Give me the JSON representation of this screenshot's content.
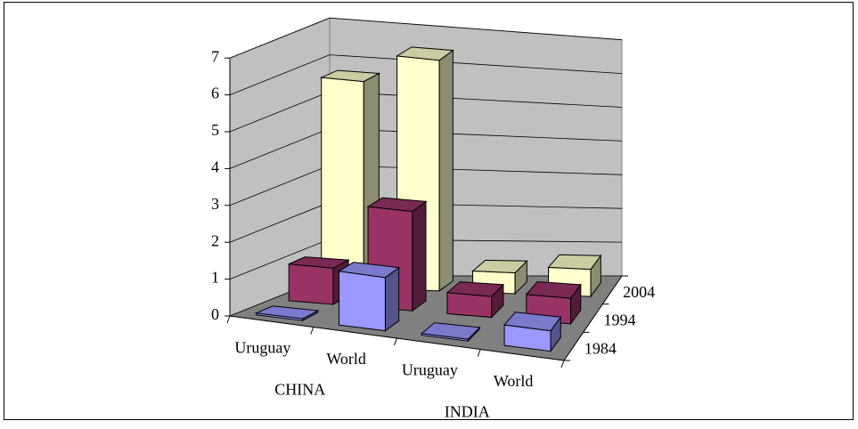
{
  "chart_data": {
    "type": "bar3d",
    "groups": [
      {
        "name": "CHINA",
        "categories": [
          "Uruguay",
          "World"
        ]
      },
      {
        "name": "INDIA",
        "categories": [
          "Uruguay",
          "World"
        ]
      }
    ],
    "series": [
      {
        "name": "1984",
        "color": "#9999ff",
        "values": [
          0.05,
          1.5,
          0.05,
          0.6
        ]
      },
      {
        "name": "1994",
        "color": "#993366",
        "values": [
          1.0,
          2.8,
          0.6,
          0.75
        ]
      },
      {
        "name": "2004",
        "color": "#ffffcc",
        "values": [
          5.7,
          6.5,
          0.6,
          0.8
        ]
      }
    ],
    "ylim": [
      0,
      7
    ],
    "yticks": [
      0,
      1,
      2,
      3,
      4,
      5,
      6,
      7
    ],
    "grid": true
  }
}
